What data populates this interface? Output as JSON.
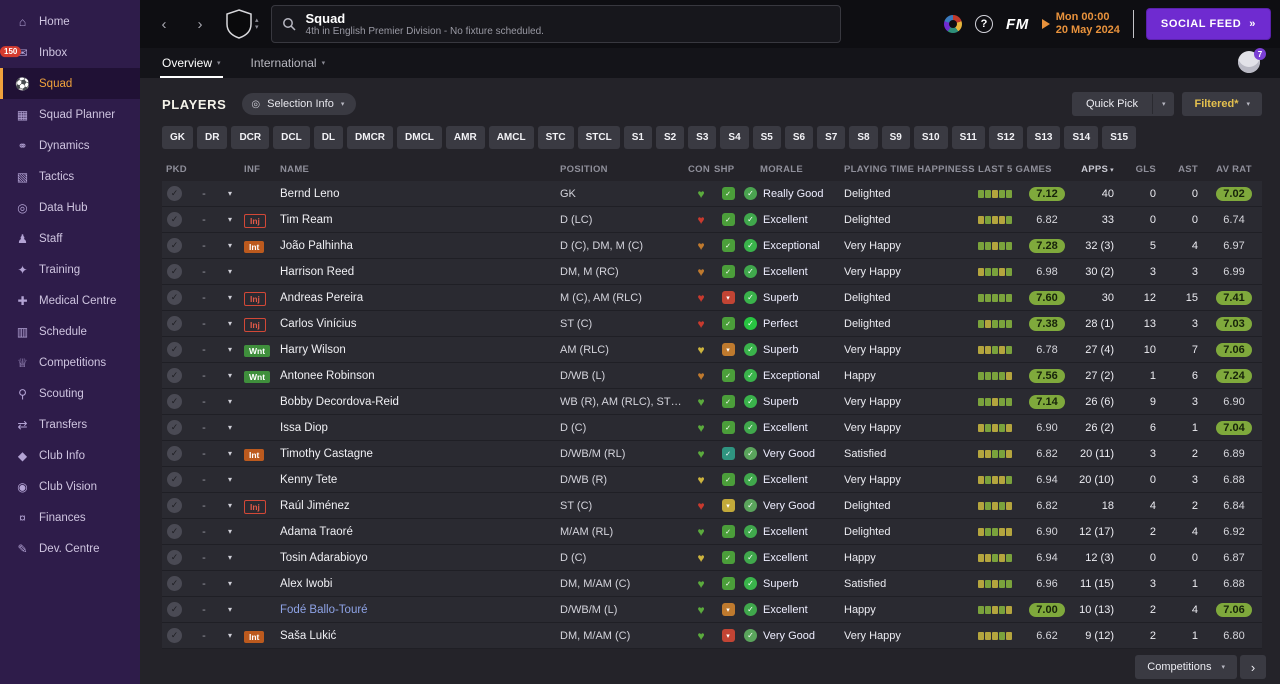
{
  "ui": {
    "chevron": "▾",
    "check": "✓",
    "back": "‹",
    "forward": "›",
    "dash": "-"
  },
  "icon_glyphs": {
    "home": "⌂",
    "inbox": "✉",
    "squad": "⚽",
    "planner": "▦",
    "dynamics": "⚭",
    "tactics": "▧",
    "datahub": "◎",
    "staff": "♟",
    "training": "✦",
    "medical": "✚",
    "schedule": "▥",
    "competitions": "♕",
    "scouting": "⚲",
    "transfers": "⇄",
    "clubinfo": "◆",
    "clubvision": "◉",
    "finances": "¤",
    "devcentre": "✎"
  },
  "sidebar": {
    "items": [
      {
        "label": "Home",
        "icon": "home"
      },
      {
        "label": "Inbox",
        "icon": "inbox",
        "badge": "150"
      },
      {
        "label": "Squad",
        "icon": "squad",
        "active": true
      },
      {
        "label": "Squad Planner",
        "icon": "planner"
      },
      {
        "label": "Dynamics",
        "icon": "dynamics"
      },
      {
        "label": "Tactics",
        "icon": "tactics"
      },
      {
        "label": "Data Hub",
        "icon": "datahub"
      },
      {
        "label": "Staff",
        "icon": "staff"
      },
      {
        "label": "Training",
        "icon": "training"
      },
      {
        "label": "Medical Centre",
        "icon": "medical"
      },
      {
        "label": "Schedule",
        "icon": "schedule"
      },
      {
        "label": "Competitions",
        "icon": "competitions"
      },
      {
        "label": "Scouting",
        "icon": "scouting"
      },
      {
        "label": "Transfers",
        "icon": "transfers"
      },
      {
        "label": "Club Info",
        "icon": "clubinfo"
      },
      {
        "label": "Club Vision",
        "icon": "clubvision"
      },
      {
        "label": "Finances",
        "icon": "finances"
      },
      {
        "label": "Dev. Centre",
        "icon": "devcentre"
      }
    ]
  },
  "topbar": {
    "title": "Squad",
    "subtitle": "4th in English Premier Division - No fixture scheduled.",
    "help_label": "?",
    "fm_label": "FM",
    "day_time": "Mon 00:00",
    "date": "20 May 2024",
    "social_feed": "SOCIAL FEED",
    "social_feed_arrows": "»"
  },
  "tabs": {
    "overview": "Overview",
    "international": "International",
    "avatar_badge": "7"
  },
  "players_bar": {
    "title": "PLAYERS",
    "selection_info": "Selection Info",
    "quick_pick": "Quick Pick",
    "filtered": "Filtered*"
  },
  "position_filters": [
    "GK",
    "DR",
    "DCR",
    "DCL",
    "DL",
    "DMCR",
    "DMCL",
    "AMR",
    "AMCL",
    "STC",
    "STCL",
    "S1",
    "S2",
    "S3",
    "S4",
    "S5",
    "S6",
    "S7",
    "S8",
    "S9",
    "S10",
    "S11",
    "S12",
    "S13",
    "S14",
    "S15"
  ],
  "table": {
    "headers": {
      "pkd": "PKD",
      "inf": "INF",
      "name": "NAME",
      "position": "POSITION",
      "con": "CON",
      "shp": "SHP",
      "morale": "MORALE",
      "playing_time": "PLAYING TIME HAPPINESS",
      "last5": "LAST 5 GAMES",
      "apps": "APPS",
      "gls": "GLS",
      "ast": "AST",
      "avrat": "AV RAT"
    },
    "sort_column": "apps",
    "rows": [
      {
        "pkd": "-",
        "inf": "",
        "name": "Bernd Leno",
        "pos": "GK",
        "con": "green",
        "shp": "green",
        "morale": "Really Good",
        "happiness": "Delighted",
        "last5_bars": [
          "g",
          "g",
          "y",
          "g",
          "g"
        ],
        "last5_avg": "7.12",
        "apps": "40",
        "gls": "0",
        "ast": "0",
        "avrat": "7.02"
      },
      {
        "pkd": "-",
        "inf": "Inj",
        "name": "Tim Ream",
        "pos": "D (LC)",
        "con": "red",
        "shp": "green",
        "morale": "Excellent",
        "happiness": "Delighted",
        "last5_bars": [
          "y",
          "g",
          "y",
          "y",
          "g"
        ],
        "last5_avg": "6.82",
        "apps": "33",
        "gls": "0",
        "ast": "0",
        "avrat": "6.74"
      },
      {
        "pkd": "-",
        "inf": "Int",
        "name": "João Palhinha",
        "pos": "D (C), DM, M (C)",
        "con": "orange",
        "shp": "green",
        "morale": "Exceptional",
        "happiness": "Very Happy",
        "last5_bars": [
          "g",
          "g",
          "y",
          "g",
          "g"
        ],
        "last5_avg": "7.28",
        "apps": "32 (3)",
        "gls": "5",
        "ast": "4",
        "avrat": "6.97"
      },
      {
        "pkd": "-",
        "inf": "",
        "name": "Harrison Reed",
        "pos": "DM, M (RC)",
        "con": "orange",
        "shp": "green",
        "morale": "Excellent",
        "happiness": "Very Happy",
        "last5_bars": [
          "y",
          "g",
          "g",
          "y",
          "g"
        ],
        "last5_avg": "6.98",
        "apps": "30 (2)",
        "gls": "3",
        "ast": "3",
        "avrat": "6.99"
      },
      {
        "pkd": "-",
        "inf": "Inj",
        "name": "Andreas Pereira",
        "pos": "M (C), AM (RLC)",
        "con": "red",
        "shp": "red",
        "morale": "Superb",
        "happiness": "Delighted",
        "last5_bars": [
          "g",
          "g",
          "g",
          "g",
          "g"
        ],
        "last5_avg": "7.60",
        "apps": "30",
        "gls": "12",
        "ast": "15",
        "avrat": "7.41"
      },
      {
        "pkd": "-",
        "inf": "Inj",
        "name": "Carlos Vinícius",
        "pos": "ST (C)",
        "con": "red",
        "shp": "green",
        "morale": "Perfect",
        "happiness": "Delighted",
        "last5_bars": [
          "g",
          "y",
          "g",
          "g",
          "g"
        ],
        "last5_avg": "7.38",
        "apps": "28 (1)",
        "gls": "13",
        "ast": "3",
        "avrat": "7.03"
      },
      {
        "pkd": "-",
        "inf": "Wnt",
        "name": "Harry Wilson",
        "pos": "AM (RLC)",
        "con": "yellow",
        "shp": "orange",
        "morale": "Superb",
        "happiness": "Very Happy",
        "last5_bars": [
          "y",
          "y",
          "g",
          "y",
          "g"
        ],
        "last5_avg": "6.78",
        "apps": "27 (4)",
        "gls": "10",
        "ast": "7",
        "avrat": "7.06"
      },
      {
        "pkd": "-",
        "inf": "Wnt",
        "name": "Antonee Robinson",
        "pos": "D/WB (L)",
        "con": "orange",
        "shp": "green",
        "morale": "Exceptional",
        "happiness": "Happy",
        "last5_bars": [
          "g",
          "g",
          "g",
          "g",
          "y"
        ],
        "last5_avg": "7.56",
        "apps": "27 (2)",
        "gls": "1",
        "ast": "6",
        "avrat": "7.24"
      },
      {
        "pkd": "-",
        "inf": "",
        "name": "Bobby Decordova-Reid",
        "pos": "WB (R), AM (RLC), ST…",
        "con": "green",
        "shp": "green",
        "morale": "Superb",
        "happiness": "Very Happy",
        "last5_bars": [
          "g",
          "g",
          "y",
          "g",
          "g"
        ],
        "last5_avg": "7.14",
        "apps": "26 (6)",
        "gls": "9",
        "ast": "3",
        "avrat": "6.90"
      },
      {
        "pkd": "-",
        "inf": "",
        "name": "Issa Diop",
        "pos": "D (C)",
        "con": "green",
        "shp": "green",
        "morale": "Excellent",
        "happiness": "Very Happy",
        "last5_bars": [
          "y",
          "g",
          "y",
          "g",
          "y"
        ],
        "last5_avg": "6.90",
        "apps": "26 (2)",
        "gls": "6",
        "ast": "1",
        "avrat": "7.04"
      },
      {
        "pkd": "-",
        "inf": "Int",
        "name": "Timothy Castagne",
        "pos": "D/WB/M (RL)",
        "con": "green",
        "shp": "teal",
        "morale": "Very Good",
        "happiness": "Satisfied",
        "last5_bars": [
          "y",
          "y",
          "g",
          "g",
          "y"
        ],
        "last5_avg": "6.82",
        "apps": "20 (11)",
        "gls": "3",
        "ast": "2",
        "avrat": "6.89"
      },
      {
        "pkd": "-",
        "inf": "",
        "name": "Kenny Tete",
        "pos": "D/WB (R)",
        "con": "yellow",
        "shp": "green",
        "morale": "Excellent",
        "happiness": "Very Happy",
        "last5_bars": [
          "y",
          "g",
          "y",
          "y",
          "g"
        ],
        "last5_avg": "6.94",
        "apps": "20 (10)",
        "gls": "0",
        "ast": "3",
        "avrat": "6.88"
      },
      {
        "pkd": "-",
        "inf": "Inj",
        "name": "Raúl Jiménez",
        "pos": "ST (C)",
        "con": "red",
        "shp": "yellow",
        "morale": "Very Good",
        "happiness": "Delighted",
        "last5_bars": [
          "y",
          "g",
          "y",
          "g",
          "y"
        ],
        "last5_avg": "6.82",
        "apps": "18",
        "gls": "4",
        "ast": "2",
        "avrat": "6.84"
      },
      {
        "pkd": "-",
        "inf": "",
        "name": "Adama Traoré",
        "pos": "M/AM (RL)",
        "con": "green",
        "shp": "green",
        "morale": "Excellent",
        "happiness": "Delighted",
        "last5_bars": [
          "y",
          "g",
          "g",
          "y",
          "y"
        ],
        "last5_avg": "6.90",
        "apps": "12 (17)",
        "gls": "2",
        "ast": "4",
        "avrat": "6.92"
      },
      {
        "pkd": "-",
        "inf": "",
        "name": "Tosin Adarabioyo",
        "pos": "D (C)",
        "con": "yellow",
        "shp": "green",
        "morale": "Excellent",
        "happiness": "Happy",
        "last5_bars": [
          "y",
          "y",
          "g",
          "y",
          "g"
        ],
        "last5_avg": "6.94",
        "apps": "12 (3)",
        "gls": "0",
        "ast": "0",
        "avrat": "6.87"
      },
      {
        "pkd": "-",
        "inf": "",
        "name": "Alex Iwobi",
        "pos": "DM, M/AM (C)",
        "con": "green",
        "shp": "green",
        "morale": "Superb",
        "happiness": "Satisfied",
        "last5_bars": [
          "y",
          "g",
          "y",
          "g",
          "g"
        ],
        "last5_avg": "6.96",
        "apps": "11 (15)",
        "gls": "3",
        "ast": "1",
        "avrat": "6.88"
      },
      {
        "pkd": "-",
        "inf": "",
        "name": "Fodé Ballo-Touré",
        "loan": true,
        "pos": "D/WB/M (L)",
        "con": "green",
        "shp": "orange",
        "morale": "Excellent",
        "happiness": "Happy",
        "last5_bars": [
          "g",
          "g",
          "y",
          "g",
          "y"
        ],
        "last5_avg": "7.00",
        "apps": "10 (13)",
        "gls": "2",
        "ast": "4",
        "avrat": "7.06"
      },
      {
        "pkd": "-",
        "inf": "Int",
        "name": "Saša Lukić",
        "pos": "DM, M/AM (C)",
        "con": "green",
        "shp": "red",
        "morale": "Very Good",
        "happiness": "Very Happy",
        "last5_bars": [
          "y",
          "y",
          "y",
          "g",
          "y"
        ],
        "last5_avg": "6.62",
        "apps": "9 (12)",
        "gls": "2",
        "ast": "1",
        "avrat": "6.80"
      }
    ]
  },
  "footer": {
    "competitions": "Competitions",
    "next_arrow": "›"
  }
}
